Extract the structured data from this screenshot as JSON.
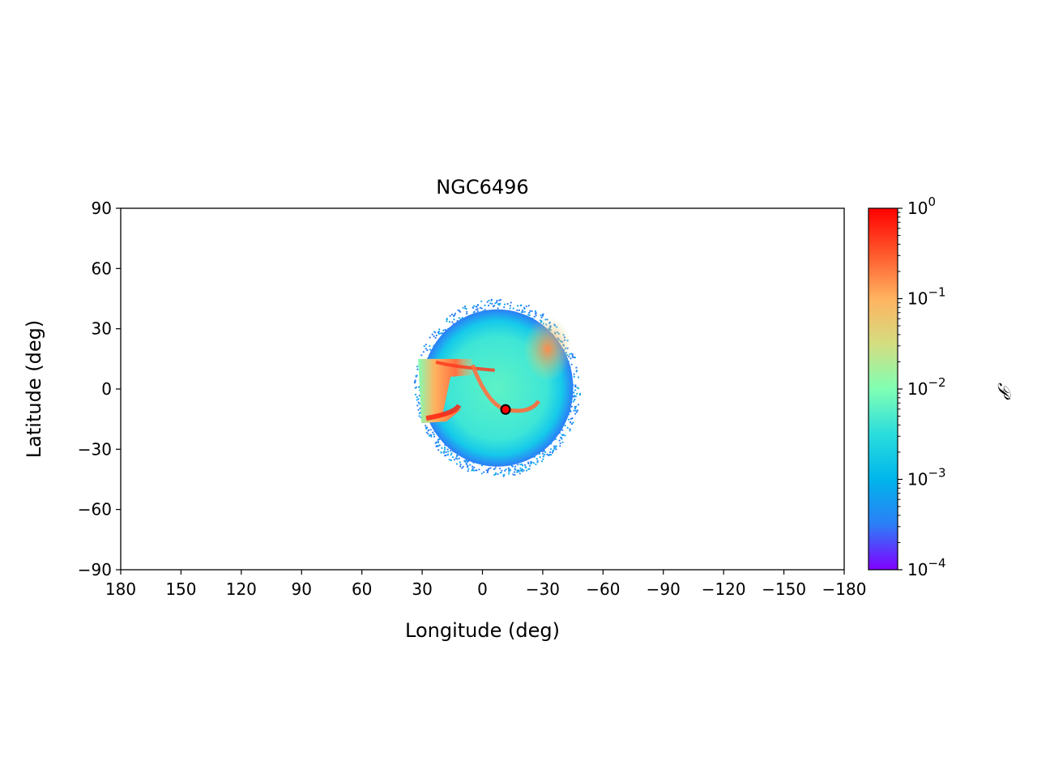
{
  "chart_data": {
    "type": "heatmap",
    "title": "NGC6496",
    "xlabel": "Longitude (deg)",
    "ylabel": "Latitude (deg)",
    "xlim": [
      180,
      -180
    ],
    "ylim": [
      -90,
      90
    ],
    "xticks": [
      180,
      150,
      120,
      90,
      60,
      30,
      0,
      -30,
      -60,
      -90,
      -120,
      -150,
      -180
    ],
    "xtick_labels": [
      "180",
      "150",
      "120",
      "90",
      "60",
      "30",
      "0",
      "−30",
      "−60",
      "−90",
      "−120",
      "−150",
      "−180"
    ],
    "yticks": [
      90,
      60,
      30,
      0,
      -30,
      -60,
      -90
    ],
    "ytick_labels": [
      "90",
      "60",
      "30",
      "0",
      "−30",
      "−60",
      "−90"
    ],
    "colorbar": {
      "label": "𝒫",
      "scale": "log",
      "range": [
        0.0001,
        1
      ],
      "ticks": [
        1,
        0.1,
        0.01,
        0.001,
        0.0001
      ],
      "tick_labels": [
        {
          "base": "10",
          "exp": "0"
        },
        {
          "base": "10",
          "exp": "−1"
        },
        {
          "base": "10",
          "exp": "−2"
        },
        {
          "base": "10",
          "exp": "−3"
        },
        {
          "base": "10",
          "exp": "−4"
        }
      ],
      "colormap": "rainbow",
      "colors": [
        "#8000ff",
        "#2c7ef7",
        "#00b5eb",
        "#2adddd",
        "#80ffb4",
        "#d4dd80",
        "#ffb360",
        "#ff582c",
        "#ff0000"
      ]
    },
    "cluster_position": {
      "lon": -11.5,
      "lat": -10.2,
      "marker_color": "#ff0000",
      "edge_color": "#000000"
    },
    "density_region": {
      "lon_range": [
        33,
        -48
      ],
      "lat_range": [
        -42,
        45
      ],
      "features": [
        {
          "name": "left-sheet",
          "lon_range": [
            32,
            10
          ],
          "lat_range": [
            -17,
            15
          ],
          "peak_density": 0.2
        },
        {
          "name": "upper-arc",
          "lon_range": [
            -25,
            -40
          ],
          "lat_range": [
            10,
            30
          ],
          "peak_density": 0.15
        },
        {
          "name": "cluster-tail",
          "lon_range": [
            -5,
            -30
          ],
          "lat_range": [
            -13,
            -7
          ],
          "peak_density": 0.5
        }
      ]
    }
  }
}
